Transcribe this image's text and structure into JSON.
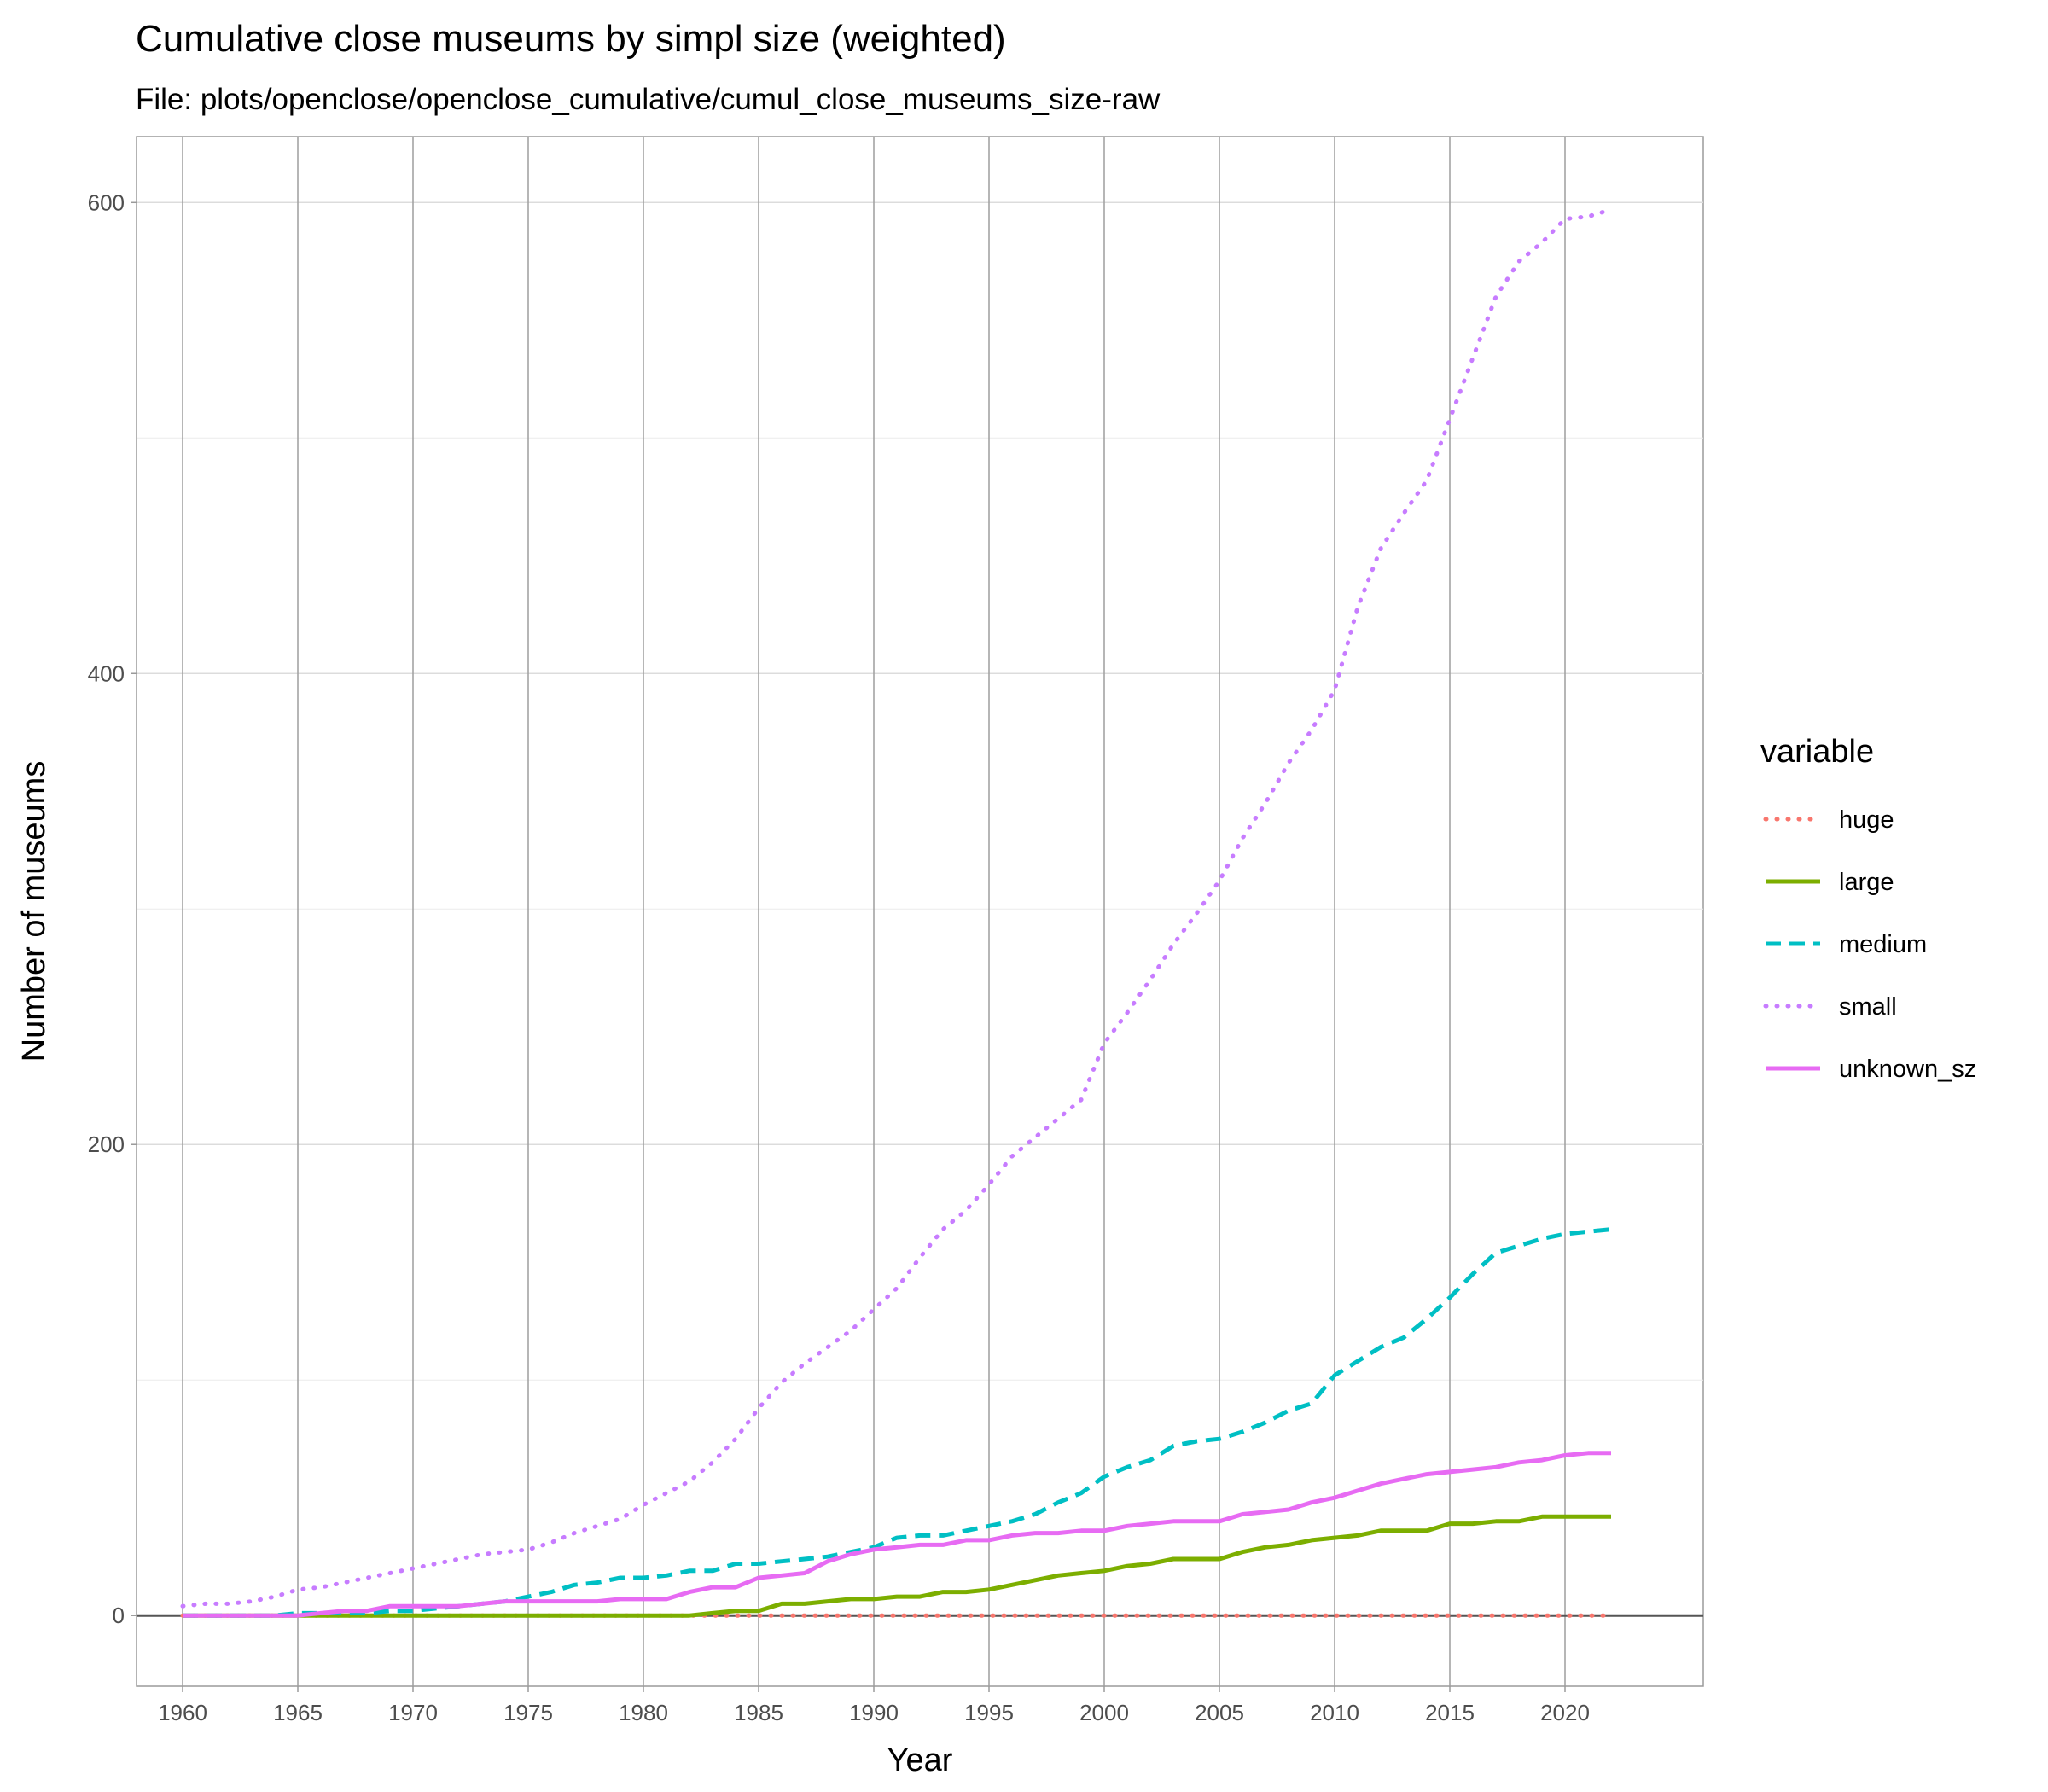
{
  "chart_data": {
    "type": "line",
    "title": "Cumulative close museums by simpl size (weighted)",
    "subtitle": "File: plots/openclose/openclose_cumulative/cumul_close_museums_size-raw",
    "xlabel": "Year",
    "ylabel": "Number of museums",
    "xlim": [
      1958,
      2026
    ],
    "ylim": [
      -30,
      628
    ],
    "x_ticks": [
      1960,
      1965,
      1970,
      1975,
      1980,
      1985,
      1990,
      1995,
      2000,
      2005,
      2010,
      2015,
      2020
    ],
    "y_ticks": [
      0,
      200,
      400,
      600
    ],
    "grid": true,
    "legend_position": "right",
    "legend_title": "variable",
    "x": [
      1960,
      1961,
      1962,
      1963,
      1964,
      1965,
      1966,
      1967,
      1968,
      1969,
      1970,
      1971,
      1972,
      1973,
      1974,
      1975,
      1976,
      1977,
      1978,
      1979,
      1980,
      1981,
      1982,
      1983,
      1984,
      1985,
      1986,
      1987,
      1988,
      1989,
      1990,
      1991,
      1992,
      1993,
      1994,
      1995,
      1996,
      1997,
      1998,
      1999,
      2000,
      2001,
      2002,
      2003,
      2004,
      2005,
      2006,
      2007,
      2008,
      2009,
      2010,
      2011,
      2012,
      2013,
      2014,
      2015,
      2016,
      2017,
      2018,
      2019,
      2020,
      2021,
      2022
    ],
    "series": [
      {
        "name": "huge",
        "color": "#F8766D",
        "dash": "dotted",
        "values": [
          0,
          0,
          0,
          0,
          0,
          0,
          0,
          0,
          0,
          0,
          0,
          0,
          0,
          0,
          0,
          0,
          0,
          0,
          0,
          0,
          0,
          0,
          0,
          0,
          0,
          0,
          0,
          0,
          0,
          0,
          0,
          0,
          0,
          0,
          0,
          0,
          0,
          0,
          0,
          0,
          0,
          0,
          0,
          0,
          0,
          0,
          0,
          0,
          0,
          0,
          0,
          0,
          0,
          0,
          0,
          0,
          0,
          0,
          0,
          0,
          0,
          0,
          0
        ]
      },
      {
        "name": "large",
        "color": "#7CAE00",
        "dash": "solid",
        "values": [
          0,
          0,
          0,
          0,
          0,
          0,
          0,
          0,
          0,
          0,
          0,
          0,
          0,
          0,
          0,
          0,
          0,
          0,
          0,
          0,
          0,
          0,
          0,
          1,
          2,
          2,
          5,
          5,
          6,
          7,
          7,
          8,
          8,
          10,
          10,
          11,
          13,
          15,
          17,
          18,
          19,
          21,
          22,
          24,
          24,
          24,
          27,
          29,
          30,
          32,
          33,
          34,
          36,
          36,
          36,
          39,
          39,
          40,
          40,
          42,
          42,
          42,
          42
        ]
      },
      {
        "name": "medium",
        "color": "#00BFC4",
        "dash": "dashed",
        "values": [
          0,
          0,
          0,
          0,
          0,
          1,
          1,
          1,
          1,
          2,
          2,
          3,
          4,
          5,
          6,
          8,
          10,
          13,
          14,
          16,
          16,
          17,
          19,
          19,
          22,
          22,
          23,
          24,
          25,
          27,
          29,
          33,
          34,
          34,
          36,
          38,
          40,
          43,
          48,
          52,
          59,
          63,
          66,
          72,
          74,
          75,
          78,
          82,
          87,
          90,
          102,
          108,
          114,
          118,
          126,
          135,
          145,
          154,
          157,
          160,
          162,
          163,
          164
        ]
      },
      {
        "name": "small",
        "color": "#C77CFF",
        "dash": "dotted",
        "values": [
          4,
          5,
          5,
          6,
          8,
          11,
          12,
          14,
          16,
          18,
          20,
          22,
          24,
          26,
          27,
          28,
          31,
          35,
          38,
          41,
          47,
          52,
          57,
          65,
          75,
          88,
          99,
          107,
          114,
          121,
          130,
          139,
          152,
          164,
          172,
          183,
          195,
          203,
          211,
          219,
          243,
          256,
          270,
          285,
          298,
          312,
          330,
          345,
          362,
          376,
          393,
          428,
          453,
          468,
          482,
          508,
          534,
          560,
          575,
          583,
          593,
          594,
          597
        ]
      },
      {
        "name": "unknown_sz",
        "color": "#E76BF3",
        "dash": "solid",
        "values": [
          0,
          0,
          0,
          0,
          0,
          0,
          1,
          2,
          2,
          4,
          4,
          4,
          4,
          5,
          6,
          6,
          6,
          6,
          6,
          7,
          7,
          7,
          10,
          12,
          12,
          16,
          17,
          18,
          23,
          26,
          28,
          29,
          30,
          30,
          32,
          32,
          34,
          35,
          35,
          36,
          36,
          38,
          39,
          40,
          40,
          40,
          43,
          44,
          45,
          48,
          50,
          53,
          56,
          58,
          60,
          61,
          62,
          63,
          65,
          66,
          68,
          69,
          69
        ]
      }
    ]
  }
}
